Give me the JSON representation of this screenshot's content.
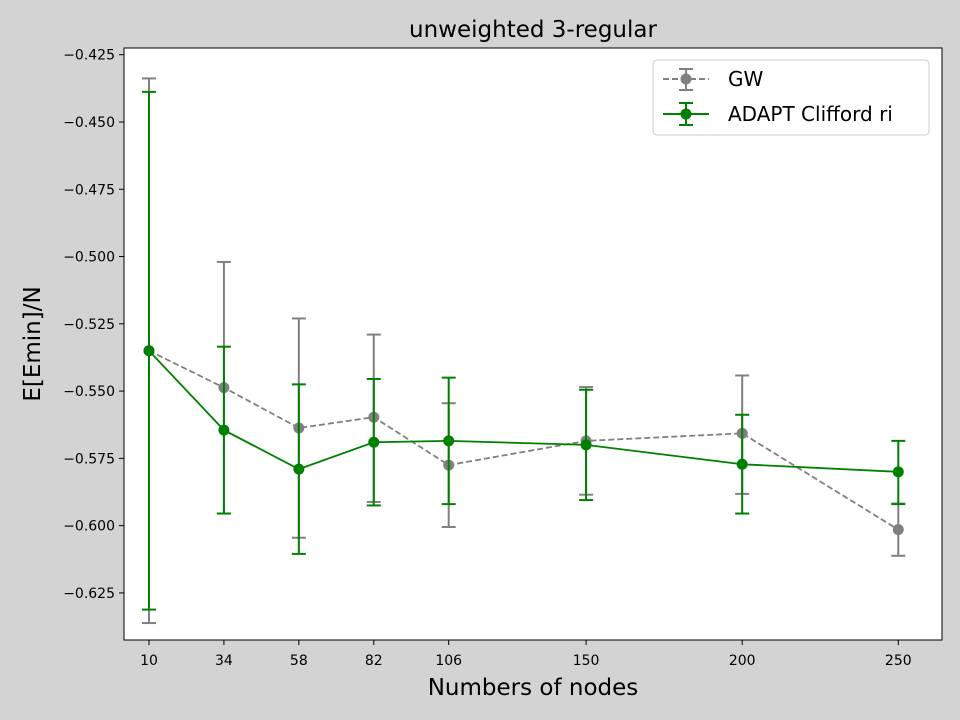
{
  "chart_data": {
    "type": "line",
    "title": "unweighted 3-regular",
    "xlabel": "Numbers of nodes",
    "ylabel": "E[Emin]/N",
    "x": [
      10,
      34,
      58,
      82,
      106,
      150,
      200,
      250
    ],
    "x_ticks": [
      "10",
      "34",
      "58",
      "82",
      "106",
      "150",
      "200",
      "250"
    ],
    "y_ticks": [
      "−0.625",
      "−0.600",
      "−0.575",
      "−0.550",
      "−0.525",
      "−0.500",
      "−0.475",
      "−0.450",
      "−0.425"
    ],
    "y_tick_values": [
      -0.625,
      -0.6,
      -0.575,
      -0.55,
      -0.525,
      -0.5,
      -0.475,
      -0.45,
      -0.425
    ],
    "xlim": [
      2.0,
      264.0
    ],
    "ylim": [
      -0.6425,
      -0.4225
    ],
    "legend_position": "top-right",
    "grid": false,
    "series": [
      {
        "name": "GW",
        "color": "#808080",
        "linestyle": "dashed",
        "values": [
          -0.535,
          -0.5487,
          -0.5637,
          -0.5597,
          -0.5775,
          -0.5685,
          -0.5657,
          -0.6015
        ],
        "err_low": [
          -0.6362,
          -0.5955,
          -0.6045,
          -0.5912,
          -0.6005,
          -0.5885,
          -0.5882,
          -0.6112
        ],
        "err_high": [
          -0.4338,
          -0.502,
          -0.523,
          -0.529,
          -0.5545,
          -0.5485,
          -0.5442,
          -0.5918
        ]
      },
      {
        "name": "ADAPT Clifford ri",
        "color": "#008000",
        "linestyle": "solid",
        "values": [
          -0.535,
          -0.5645,
          -0.579,
          -0.569,
          -0.5685,
          -0.57,
          -0.5772,
          -0.58
        ],
        "err_low": [
          -0.6312,
          -0.5955,
          -0.6105,
          -0.5925,
          -0.592,
          -0.5905,
          -0.5955,
          -0.592
        ],
        "err_high": [
          -0.4388,
          -0.5335,
          -0.5475,
          -0.5455,
          -0.545,
          -0.5495,
          -0.5588,
          -0.5685
        ]
      }
    ]
  }
}
